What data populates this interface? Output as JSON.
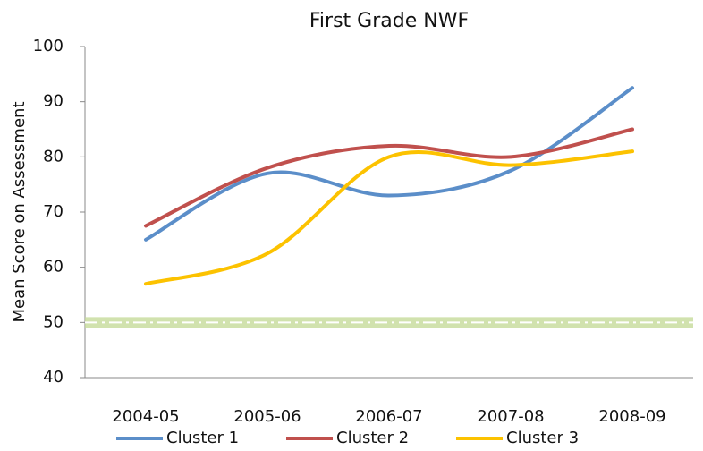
{
  "chart_data": {
    "type": "line",
    "title": "First Grade NWF",
    "y_label": "Mean Score on Assessment",
    "categories": [
      "2004-05",
      "2005-06",
      "2006-07",
      "2007-08",
      "2008-09"
    ],
    "series": [
      {
        "name": "Cluster 1",
        "color": "#5b8ec9",
        "values": [
          65,
          77,
          73,
          77.5,
          92.5
        ]
      },
      {
        "name": "Cluster 2",
        "color": "#c0504d",
        "values": [
          67.5,
          78,
          82,
          80,
          85
        ]
      },
      {
        "name": "Cluster 3",
        "color": "#fcc200",
        "values": [
          57,
          62.5,
          80,
          78.5,
          81
        ]
      }
    ],
    "reference_line": 50,
    "ylim": [
      40,
      100
    ],
    "yticks": [
      40,
      50,
      60,
      70,
      80,
      90,
      100
    ],
    "grid": false,
    "legend": "bottom",
    "smooth": true
  }
}
